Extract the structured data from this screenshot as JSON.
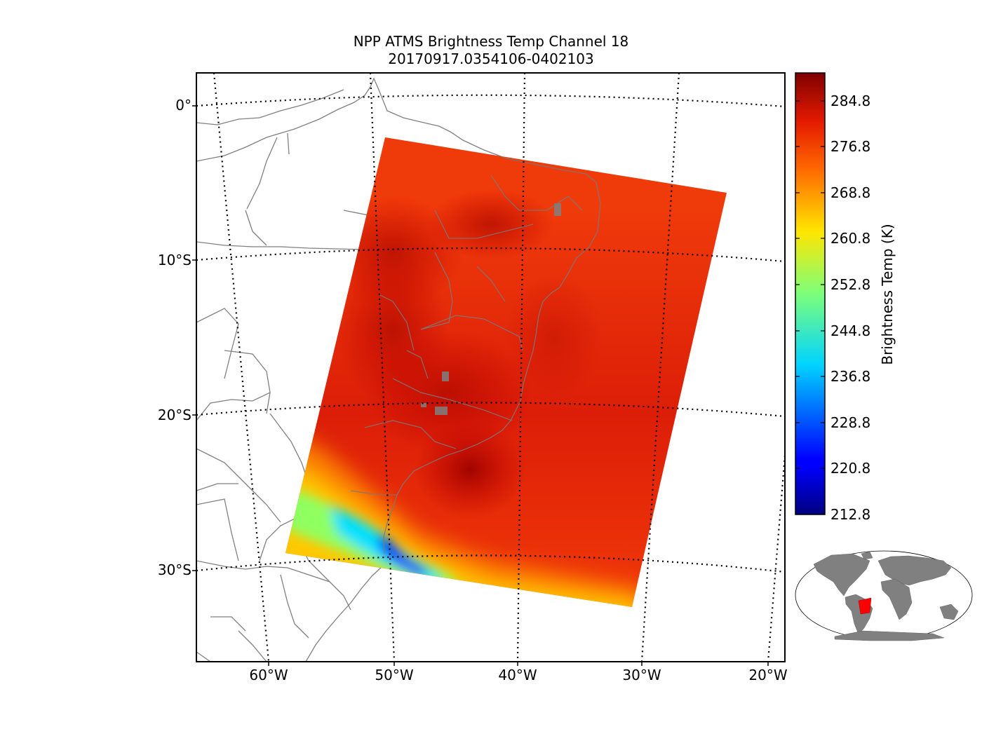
{
  "title": {
    "line1": "NPP ATMS Brightness Temp Channel 18",
    "line2": "20170917.0354106-0402103"
  },
  "map": {
    "lat_labels": [
      "0°",
      "10°S",
      "20°S",
      "30°S"
    ],
    "lon_labels": [
      "60°W",
      "50°W",
      "40°W",
      "30°W",
      "20°W"
    ],
    "coastline_color": "#808080",
    "gridline_style": "dotted"
  },
  "colorbar": {
    "label": "Brightness Temp (K)",
    "ticks": [
      "284.8",
      "276.8",
      "268.8",
      "260.8",
      "252.8",
      "244.8",
      "236.8",
      "228.8",
      "220.8",
      "212.8"
    ],
    "min": 212.8,
    "max": 290.0,
    "colormap": "jet"
  },
  "inset": {
    "land_color": "#808080",
    "swath_color": "#ff0000"
  }
}
